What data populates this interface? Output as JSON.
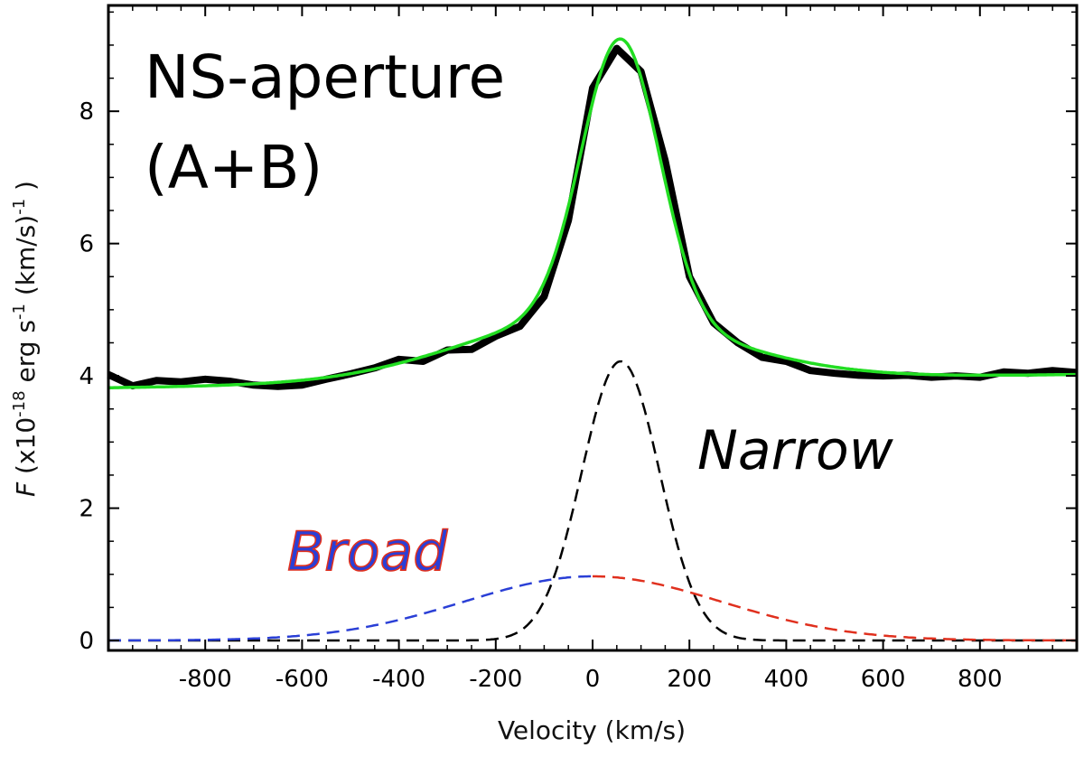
{
  "chart_data": {
    "type": "line",
    "title": "NS-aperture (A+B)",
    "title_lines": [
      "NS-aperture",
      "(A+B)"
    ],
    "xlabel": "Velocity (km/s)",
    "ylabel": {
      "prefix": "F",
      "parts": [
        " (x10",
        "-18",
        " erg s",
        "-1",
        " (km/s)",
        "-1",
        " )"
      ]
    },
    "xlim": [
      -1000,
      1000
    ],
    "ylim": [
      -0.15,
      9.6
    ],
    "xticks": [
      -800,
      -600,
      -400,
      -200,
      0,
      200,
      400,
      600,
      800
    ],
    "xticklabels": [
      "-800",
      "-600",
      "-400",
      "-200",
      "0",
      "200",
      "400",
      "600",
      "800"
    ],
    "yticks": [
      0,
      2,
      4,
      6,
      8
    ],
    "yticklabels": [
      "0",
      "2",
      "4",
      "6",
      "8"
    ],
    "grid": false,
    "annotations": {
      "narrow": "Narrow",
      "broad": "Broad"
    },
    "colors": {
      "observed": "#000000",
      "fit": "#22dd22",
      "narrow": "#000000",
      "broad_blue": "#2a3fd6",
      "broad_red": "#e0301e"
    },
    "series": [
      {
        "style": "thick-solid",
        "x": [
          -1000,
          -950,
          -900,
          -850,
          -800,
          -750,
          -700,
          -650,
          -600,
          -550,
          -500,
          -450,
          -400,
          -350,
          -300,
          -250,
          -200,
          -150,
          -100,
          -50,
          0,
          50,
          100,
          150,
          200,
          250,
          300,
          350,
          400,
          450,
          500,
          550,
          600,
          650,
          700,
          750,
          800,
          850,
          900,
          950,
          1000
        ],
        "y": [
          4.02,
          3.85,
          3.93,
          3.91,
          3.95,
          3.92,
          3.86,
          3.84,
          3.86,
          3.95,
          4.03,
          4.12,
          4.25,
          4.22,
          4.39,
          4.4,
          4.6,
          4.75,
          5.2,
          6.35,
          8.35,
          8.95,
          8.6,
          7.25,
          5.5,
          4.8,
          4.5,
          4.28,
          4.22,
          4.08,
          4.04,
          4.01,
          4.0,
          4.01,
          3.98,
          4.0,
          3.98,
          4.06,
          4.04,
          4.08,
          4.05
        ]
      },
      {
        "style": "fit",
        "model": {
          "baseline": 3.82,
          "baseline_slope": 0.00022,
          "narrow": {
            "amplitude": 4.22,
            "center": 58,
            "sigma": 80
          },
          "broad": {
            "amplitude": 0.97,
            "center": 0,
            "sigma": 265
          }
        }
      },
      {
        "style": "dashed-narrow",
        "model": {
          "amplitude": 4.22,
          "center": 58,
          "sigma": 80
        }
      },
      {
        "style": "dashed-broad",
        "model": {
          "amplitude": 0.97,
          "center": 0,
          "sigma": 265
        }
      }
    ]
  }
}
